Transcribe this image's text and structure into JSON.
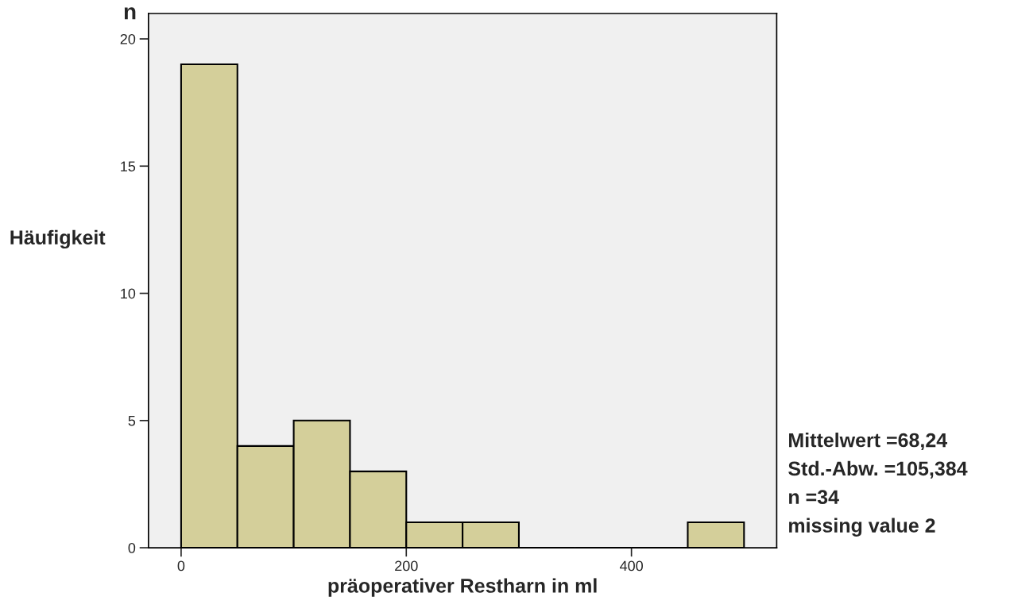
{
  "chart_data": {
    "type": "histogram",
    "xlabel": "präoperativer Restharn in ml",
    "ylabel": "Häufigkeit",
    "bins": [
      0,
      50,
      100,
      150,
      200,
      250,
      300,
      350,
      400,
      450,
      500
    ],
    "values": [
      19,
      4,
      5,
      3,
      1,
      1,
      0,
      0,
      0,
      1
    ],
    "color": "#d4cf9a",
    "xlim": [
      -29,
      529
    ],
    "ylim": [
      0,
      21
    ],
    "xticks": [
      0,
      200,
      400
    ],
    "yticks": [
      0,
      5,
      10,
      15,
      20
    ],
    "grid": false,
    "legend": false,
    "annotations": [
      "n",
      "Mittelwert =68,24",
      "Std.-Abw. =105,384",
      "n =34",
      "missing value 2"
    ]
  }
}
